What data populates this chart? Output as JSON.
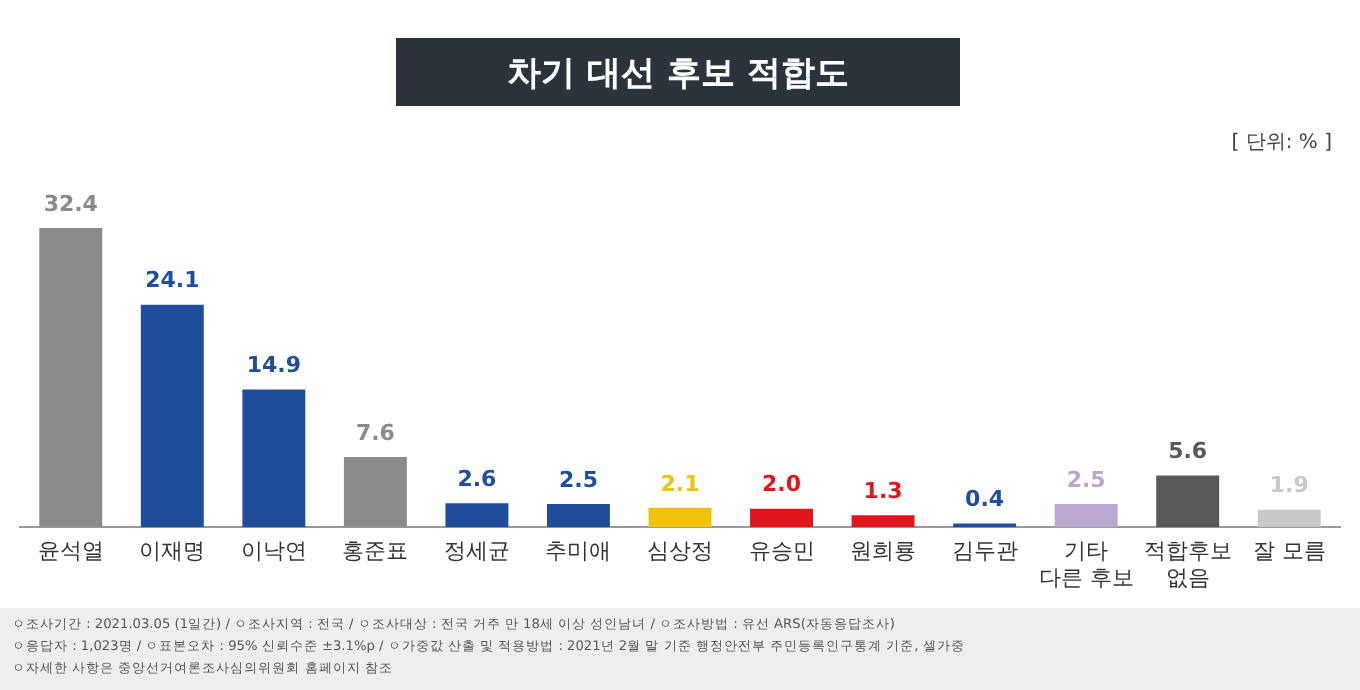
{
  "chart_data": {
    "type": "bar",
    "title": "차기 대선 후보 적합도",
    "categories": [
      "윤석열",
      "이재명",
      "이낙연",
      "홍준표",
      "정세균",
      "추미애",
      "심상정",
      "유승민",
      "원희룡",
      "김두관",
      "기타\n다른 후보",
      "적합후보\n없음",
      "잘 모름"
    ],
    "values": [
      32.4,
      24.1,
      14.9,
      7.6,
      2.6,
      2.5,
      2.1,
      2.0,
      1.3,
      0.4,
      2.5,
      5.6,
      1.9
    ],
    "colors": [
      "#8a8a8a",
      "#1f4e9c",
      "#1f4e9c",
      "#8a8a8a",
      "#1f4e9c",
      "#1f4e9c",
      "#f0c20c",
      "#e0161c",
      "#e0161c",
      "#1f4e9c",
      "#b9a7d0",
      "#595959",
      "#c8c8c8"
    ],
    "value_labels": [
      "32.4",
      "24.1",
      "14.9",
      "7.6",
      "2.6",
      "2.5",
      "2.1",
      "2.0",
      "1.3",
      "0.4",
      "2.5",
      "5.6",
      "1.9"
    ],
    "grid": false,
    "legend": false,
    "annotations": [
      "[ 단위: % ]",
      "ㅇ조사기간 : 2021.03.05 (1일간) / ㅇ조사지역 : 전국 / ㅇ조사대상 : 전국 거주 만 18세 이상 성인남녀 / ㅇ조사방법 : 유선 ARS(자동응답조사)",
      "ㅇ응답자 : 1,023명 / ㅇ표본오차 : 95% 신뢰수준 ±3.1%p / ㅇ가중값 산출 및 적용방법 : 2021년 2월 말 기준 행정안전부 주민등록인구통계 기준, 셀가중",
      "ㅇ자세한 사항은 중앙선거여론조사심의위원회 홈페이지 참조"
    ]
  }
}
